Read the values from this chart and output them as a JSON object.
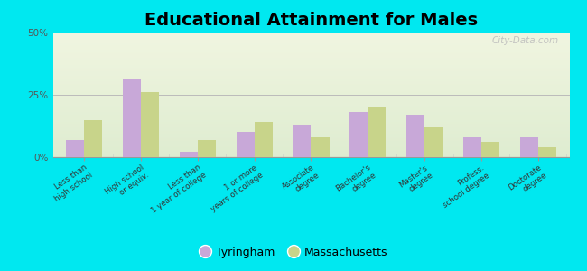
{
  "title": "Educational Attainment for Males",
  "categories": [
    "Less than\nhigh school",
    "High school\nor equiv.",
    "Less than\n1 year of college",
    "1 or more\nyears of college",
    "Associate\ndegree",
    "Bachelor's\ndegree",
    "Master's\ndegree",
    "Profess.\nschool degree",
    "Doctorate\ndegree"
  ],
  "tyringham": [
    7,
    31,
    2,
    10,
    13,
    18,
    17,
    8,
    8
  ],
  "massachusetts": [
    15,
    26,
    7,
    14,
    8,
    20,
    12,
    6,
    4
  ],
  "tyringham_color": "#c8a8d8",
  "massachusetts_color": "#c8d48a",
  "bg_color": "#00e8f0",
  "plot_bg_top": "#f0f5e0",
  "plot_bg_bottom": "#deecd0",
  "ylim": [
    0,
    50
  ],
  "yticks": [
    0,
    25,
    50
  ],
  "ytick_labels": [
    "0%",
    "25%",
    "50%"
  ],
  "bar_width": 0.32,
  "title_fontsize": 14,
  "legend_labels": [
    "Tyringham",
    "Massachusetts"
  ],
  "watermark": "City-Data.com"
}
